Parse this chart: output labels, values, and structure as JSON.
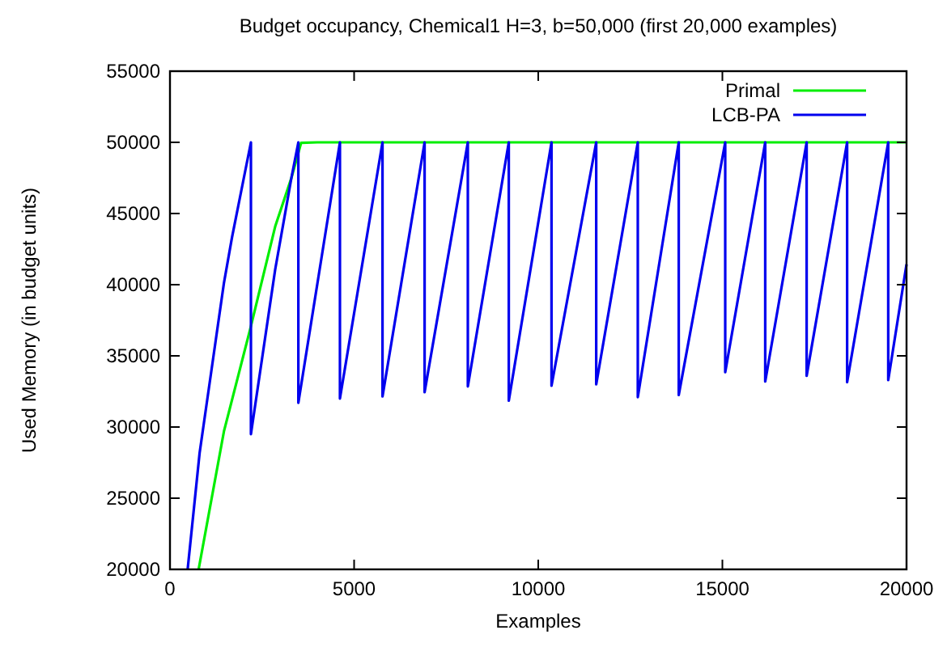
{
  "chart_data": {
    "type": "line",
    "title": "Budget occupancy, Chemical1 H=3, b=50,000 (first 20,000 examples)",
    "xlabel": "Examples",
    "ylabel": "Used Memory (in budget units)",
    "xlim": [
      0,
      20000
    ],
    "ylim": [
      20000,
      55000
    ],
    "xticks": [
      0,
      5000,
      10000,
      15000,
      20000
    ],
    "yticks": [
      20000,
      25000,
      30000,
      35000,
      40000,
      45000,
      50000,
      55000
    ],
    "grid": false,
    "legend": "top right",
    "marker": "none",
    "line_style": "solid",
    "series": [
      {
        "name": "Primal",
        "color": "#00ee00",
        "x": [
          778,
          1465,
          2198,
          2857,
          3297,
          3560,
          4000,
          20000
        ],
        "values": [
          20000,
          29690,
          37080,
          44090,
          47500,
          49960,
          50000,
          50000
        ]
      },
      {
        "name": "LCB-PA",
        "color": "#0000ee",
        "x": [
          480,
          805,
          1245,
          1465,
          1685,
          2198,
          2198,
          2857,
          3297,
          3486,
          3486,
          4615,
          4615,
          5771,
          5771,
          6914,
          6914,
          8088,
          8088,
          9200,
          9200,
          10360,
          10360,
          11574,
          11574,
          12703,
          12703,
          13815,
          13815,
          15077,
          15077,
          16163,
          16163,
          17288,
          17288,
          18387,
          18387,
          19503,
          19503,
          20000
        ],
        "values": [
          20000,
          28180,
          36140,
          40110,
          43330,
          50000,
          29500,
          41060,
          47500,
          50000,
          31700,
          50000,
          32000,
          50000,
          32150,
          50000,
          32450,
          50000,
          32850,
          50000,
          31850,
          50000,
          32900,
          50000,
          33000,
          50000,
          32100,
          50000,
          32250,
          50000,
          33850,
          50000,
          33200,
          50000,
          33600,
          50000,
          33150,
          50000,
          33300,
          41440
        ]
      }
    ]
  }
}
